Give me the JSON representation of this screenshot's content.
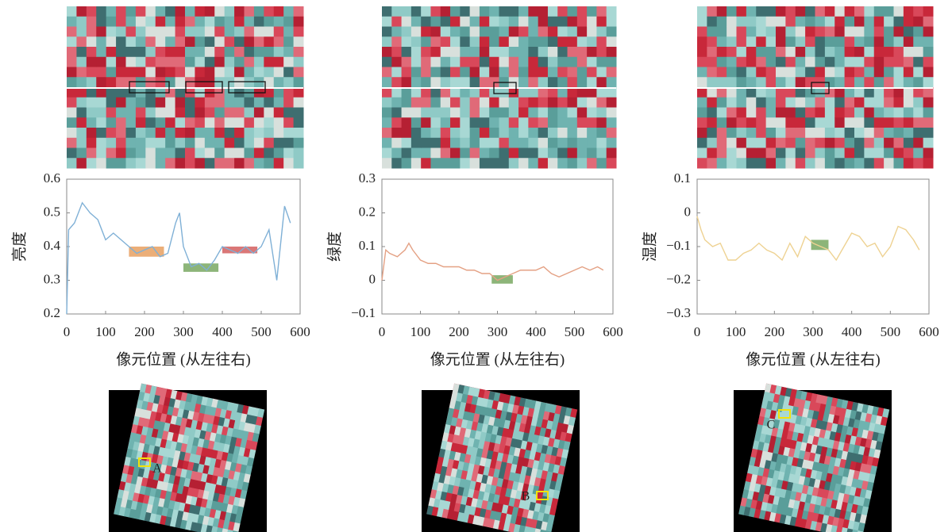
{
  "chart_data": [
    {
      "type": "line",
      "ylabel": "亮度",
      "xlabel": "像元位置 (从左往右)",
      "x": [
        0,
        5,
        20,
        40,
        60,
        80,
        100,
        120,
        140,
        160,
        180,
        200,
        220,
        240,
        260,
        280,
        290,
        300,
        320,
        340,
        360,
        380,
        400,
        420,
        440,
        460,
        480,
        500,
        520,
        540,
        560,
        575
      ],
      "series": [
        {
          "color": "#7fb0d6",
          "values": [
            0.2,
            0.45,
            0.47,
            0.53,
            0.5,
            0.48,
            0.42,
            0.44,
            0.42,
            0.4,
            0.38,
            0.39,
            0.4,
            0.37,
            0.38,
            0.47,
            0.5,
            0.4,
            0.34,
            0.35,
            0.33,
            0.36,
            0.4,
            0.39,
            0.38,
            0.4,
            0.38,
            0.4,
            0.45,
            0.3,
            0.52,
            0.47
          ]
        }
      ],
      "regions": [
        {
          "x": [
            160,
            250
          ],
          "y": [
            0.37,
            0.4
          ],
          "color": "#e8a060"
        },
        {
          "x": [
            300,
            390
          ],
          "y": [
            0.325,
            0.35
          ],
          "color": "#79a862"
        },
        {
          "x": [
            400,
            490
          ],
          "y": [
            0.38,
            0.4
          ],
          "color": "#d35f5f"
        }
      ],
      "xlim": [
        0,
        600
      ],
      "xticks": [
        0,
        100,
        200,
        300,
        400,
        500,
        600
      ],
      "ylim": [
        0.2,
        0.6
      ],
      "yticks": [
        0.2,
        0.3,
        0.4,
        0.5,
        0.6
      ]
    },
    {
      "type": "line",
      "ylabel": "绿度",
      "xlabel": "像元位置 (从左往右)",
      "x": [
        0,
        10,
        20,
        40,
        60,
        70,
        80,
        100,
        120,
        140,
        160,
        180,
        200,
        220,
        240,
        260,
        280,
        300,
        320,
        340,
        360,
        380,
        400,
        420,
        440,
        460,
        480,
        500,
        520,
        540,
        560,
        575
      ],
      "series": [
        {
          "color": "#e4a184",
          "values": [
            0.0,
            0.09,
            0.08,
            0.07,
            0.09,
            0.11,
            0.09,
            0.06,
            0.05,
            0.05,
            0.04,
            0.04,
            0.04,
            0.03,
            0.03,
            0.02,
            0.02,
            0.0,
            0.01,
            0.02,
            0.03,
            0.03,
            0.03,
            0.04,
            0.02,
            0.01,
            0.02,
            0.03,
            0.04,
            0.03,
            0.04,
            0.03
          ]
        }
      ],
      "regions": [
        {
          "x": [
            285,
            340
          ],
          "y": [
            -0.01,
            0.015
          ],
          "color": "#79a862"
        }
      ],
      "xlim": [
        0,
        600
      ],
      "xticks": [
        0,
        100,
        200,
        300,
        400,
        500,
        600
      ],
      "ylim": [
        -0.1,
        0.3
      ],
      "yticks": [
        {
          "value": -0.1,
          "label": "−0.1"
        },
        0,
        0.1,
        0.2,
        0.3
      ]
    },
    {
      "type": "line",
      "ylabel": "湿度",
      "xlabel": "像元位置 (从左往右)",
      "x": [
        0,
        10,
        20,
        40,
        60,
        80,
        100,
        120,
        140,
        160,
        180,
        200,
        220,
        240,
        260,
        280,
        300,
        320,
        340,
        360,
        380,
        400,
        420,
        440,
        460,
        480,
        500,
        520,
        540,
        560,
        575
      ],
      "series": [
        {
          "color": "#eed292",
          "values": [
            -0.01,
            -0.05,
            -0.08,
            -0.1,
            -0.09,
            -0.14,
            -0.14,
            -0.12,
            -0.11,
            -0.09,
            -0.11,
            -0.12,
            -0.14,
            -0.09,
            -0.13,
            -0.07,
            -0.09,
            -0.1,
            -0.11,
            -0.14,
            -0.1,
            -0.06,
            -0.07,
            -0.1,
            -0.09,
            -0.13,
            -0.1,
            -0.04,
            -0.05,
            -0.08,
            -0.11
          ]
        }
      ],
      "regions": [
        {
          "x": [
            295,
            340
          ],
          "y": [
            -0.11,
            -0.08
          ],
          "color": "#79a862"
        }
      ],
      "xlim": [
        0,
        600
      ],
      "xticks": [
        0,
        100,
        200,
        300,
        400,
        500,
        600
      ],
      "ylim": [
        -0.3,
        0.1
      ],
      "yticks": [
        {
          "value": -0.3,
          "label": "−0.3"
        },
        {
          "value": -0.2,
          "label": "−0.2"
        },
        {
          "value": -0.1,
          "label": "−0.1"
        },
        0,
        0.1
      ]
    }
  ],
  "locator_labels": [
    "A",
    "B",
    "C"
  ]
}
